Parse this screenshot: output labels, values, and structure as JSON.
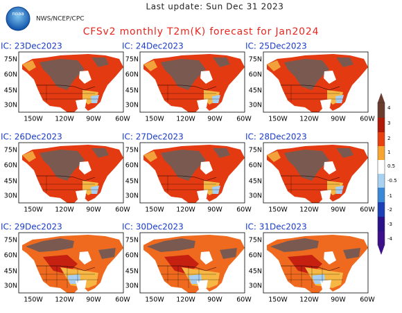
{
  "header": {
    "logo_text": "noaa",
    "agency": "NWS/NCEP/CPC",
    "update": "Last update: Sun Dec 31 2023",
    "title": "CFSv2 monthly T2m(K) forecast for Jan2024"
  },
  "panels": [
    "IC: 23Dec2023",
    "IC: 24Dec2023",
    "IC: 25Dec2023",
    "IC: 26Dec2023",
    "IC: 27Dec2023",
    "IC: 28Dec2023",
    "IC: 29Dec2023",
    "IC: 30Dec2023",
    "IC: 31Dec2023"
  ],
  "lat_labels": [
    "75N",
    "60N",
    "45N",
    "30N"
  ],
  "lon_labels": [
    "150W",
    "120W",
    "90W",
    "60W"
  ],
  "colorbar": {
    "ticks": [
      4,
      3,
      2,
      1,
      0.5,
      -0.5,
      -1,
      -2,
      -3,
      -4
    ]
  }
}
